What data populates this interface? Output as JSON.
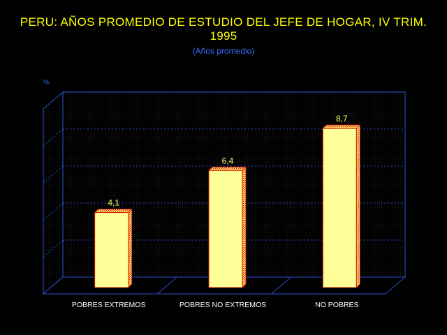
{
  "title_line1": "PERU: AÑOS PROMEDIO DE ESTUDIO DEL JEFE DE HOGAR, IV TRIM.",
  "title_line2": "1995",
  "chart_data": {
    "type": "bar",
    "title": "PERU: AÑOS PROMEDIO DE ESTUDIO DEL JEFE DE HOGAR, IV TRIM. 1995",
    "subtitle": "(Años promedio)",
    "ylabel": "%",
    "categories": [
      "POBRES EXTREMOS",
      "POBRES NO EXTREMOS",
      "NO POBRES"
    ],
    "values": [
      4.1,
      6.4,
      8.7
    ],
    "value_labels": [
      "4,1",
      "6,4",
      "8,7"
    ],
    "ylim": [
      0,
      10
    ],
    "grid": true,
    "legend": "none",
    "colors": {
      "bar_face": "#ffff99",
      "bar_edge": "#cc2200",
      "title": "#ffff00",
      "subtitle": "#3a6cff",
      "grid": "#2a4fd0",
      "background": "#000000"
    }
  }
}
